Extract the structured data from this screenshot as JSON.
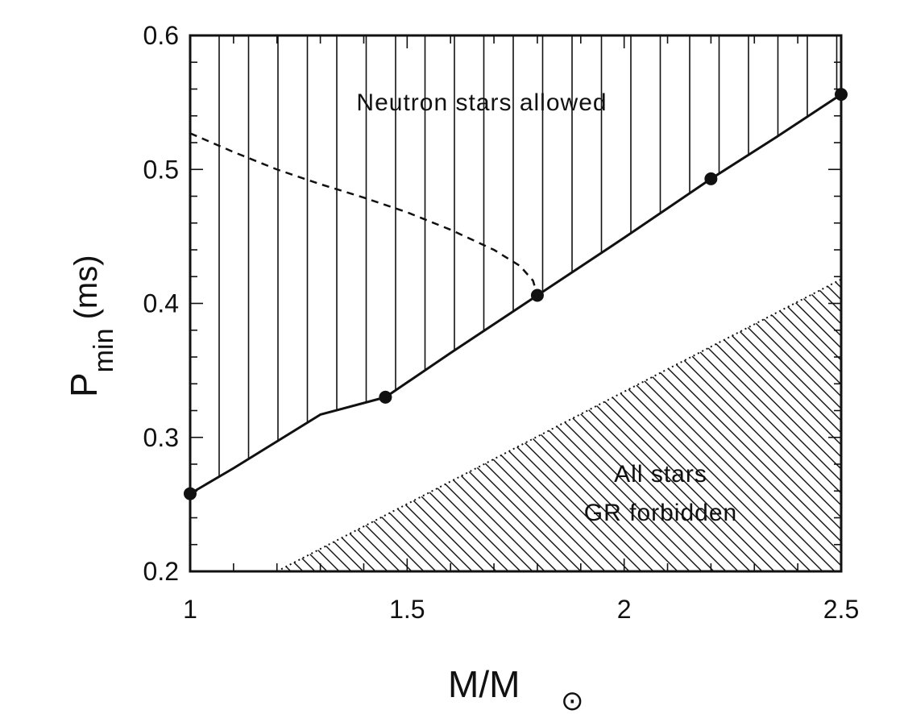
{
  "chart_data": {
    "type": "line",
    "xlabel": {
      "base": "M/M",
      "subscript_symbol": "⊙"
    },
    "ylabel": {
      "base": "P",
      "subscript": "min",
      "unit": " (ms)"
    },
    "xlim": [
      1,
      2.5
    ],
    "ylim": [
      0.2,
      0.6
    ],
    "x_ticks": [
      1,
      1.5,
      2,
      2.5
    ],
    "x_tick_labels": [
      "1",
      "1.5",
      "2",
      "2.5"
    ],
    "y_ticks": [
      0.2,
      0.3,
      0.4,
      0.5,
      0.6
    ],
    "y_tick_labels": [
      "0.2",
      "0.3",
      "0.4",
      "0.5",
      "0.6"
    ],
    "grid": false,
    "series": [
      {
        "style": "solid",
        "x": [
          1.0,
          1.1,
          1.2,
          1.3,
          1.45,
          1.6,
          1.8,
          2.0,
          2.2,
          2.35,
          2.5
        ],
        "y": [
          0.258,
          0.277,
          0.297,
          0.317,
          0.33,
          0.363,
          0.406,
          0.449,
          0.493,
          0.524,
          0.556
        ]
      },
      {
        "style": "dashed",
        "x": [
          1.0,
          1.1,
          1.2,
          1.3,
          1.4,
          1.5,
          1.6,
          1.7,
          1.76,
          1.79,
          1.8
        ],
        "y": [
          0.527,
          0.513,
          0.5,
          0.489,
          0.479,
          0.468,
          0.455,
          0.44,
          0.428,
          0.417,
          0.406
        ]
      }
    ],
    "points": {
      "x": [
        1.0,
        1.45,
        1.8,
        2.2,
        2.5
      ],
      "y": [
        0.258,
        0.33,
        0.406,
        0.493,
        0.556
      ]
    },
    "gr_forbidden_boundary": {
      "x": [
        1.2,
        2.5
      ],
      "y": [
        0.2,
        0.418
      ]
    },
    "annotations": {
      "allowed": "Neutron stars allowed",
      "forbidden_line1": "All stars",
      "forbidden_line2": "GR forbidden"
    }
  }
}
